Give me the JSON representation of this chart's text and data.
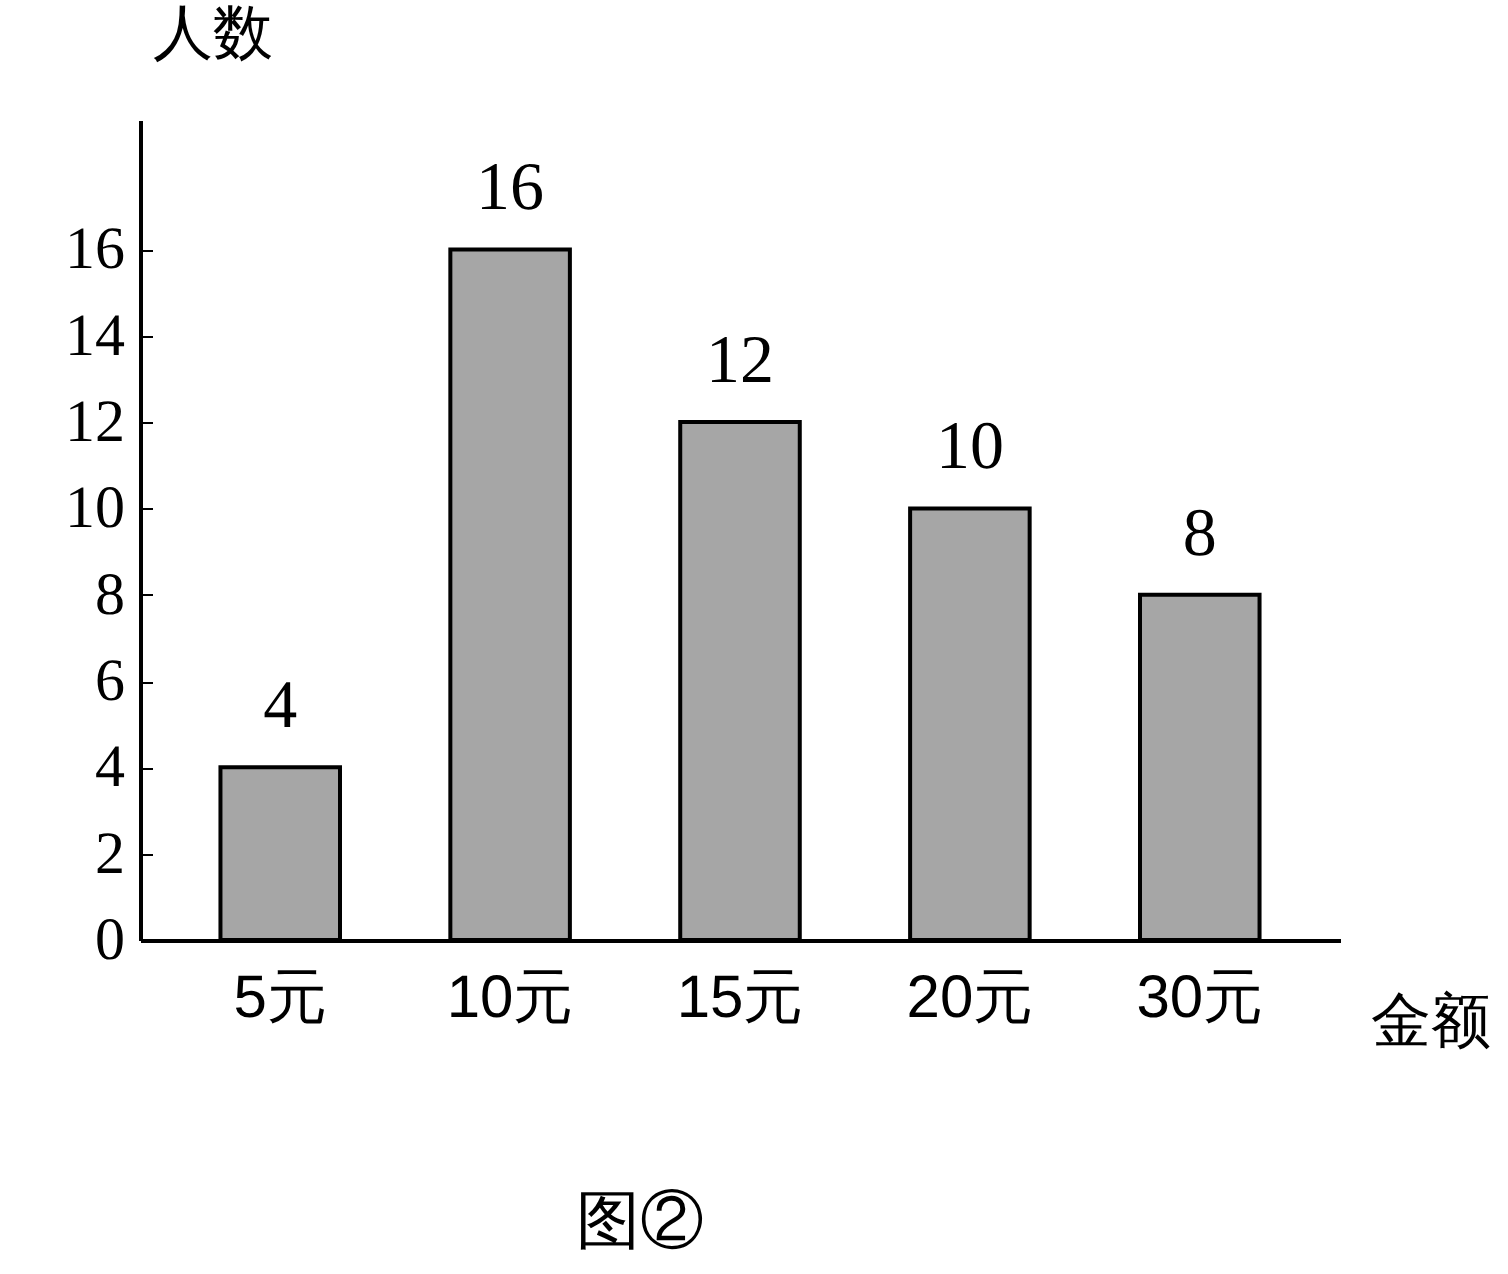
{
  "chart_data": {
    "type": "bar",
    "xlabel": "金额",
    "ylabel": "人数",
    "annotations": [
      "图②"
    ],
    "categories": [
      "5元",
      "10元",
      "15元",
      "20元",
      "30元"
    ],
    "values": [
      4,
      16,
      12,
      10,
      8
    ],
    "color": "#a6a6a6",
    "ylim": [
      0,
      19
    ],
    "yticks": [
      0,
      2,
      4,
      6,
      8,
      10,
      12,
      14,
      16
    ],
    "grid": false,
    "data_labels": true
  }
}
